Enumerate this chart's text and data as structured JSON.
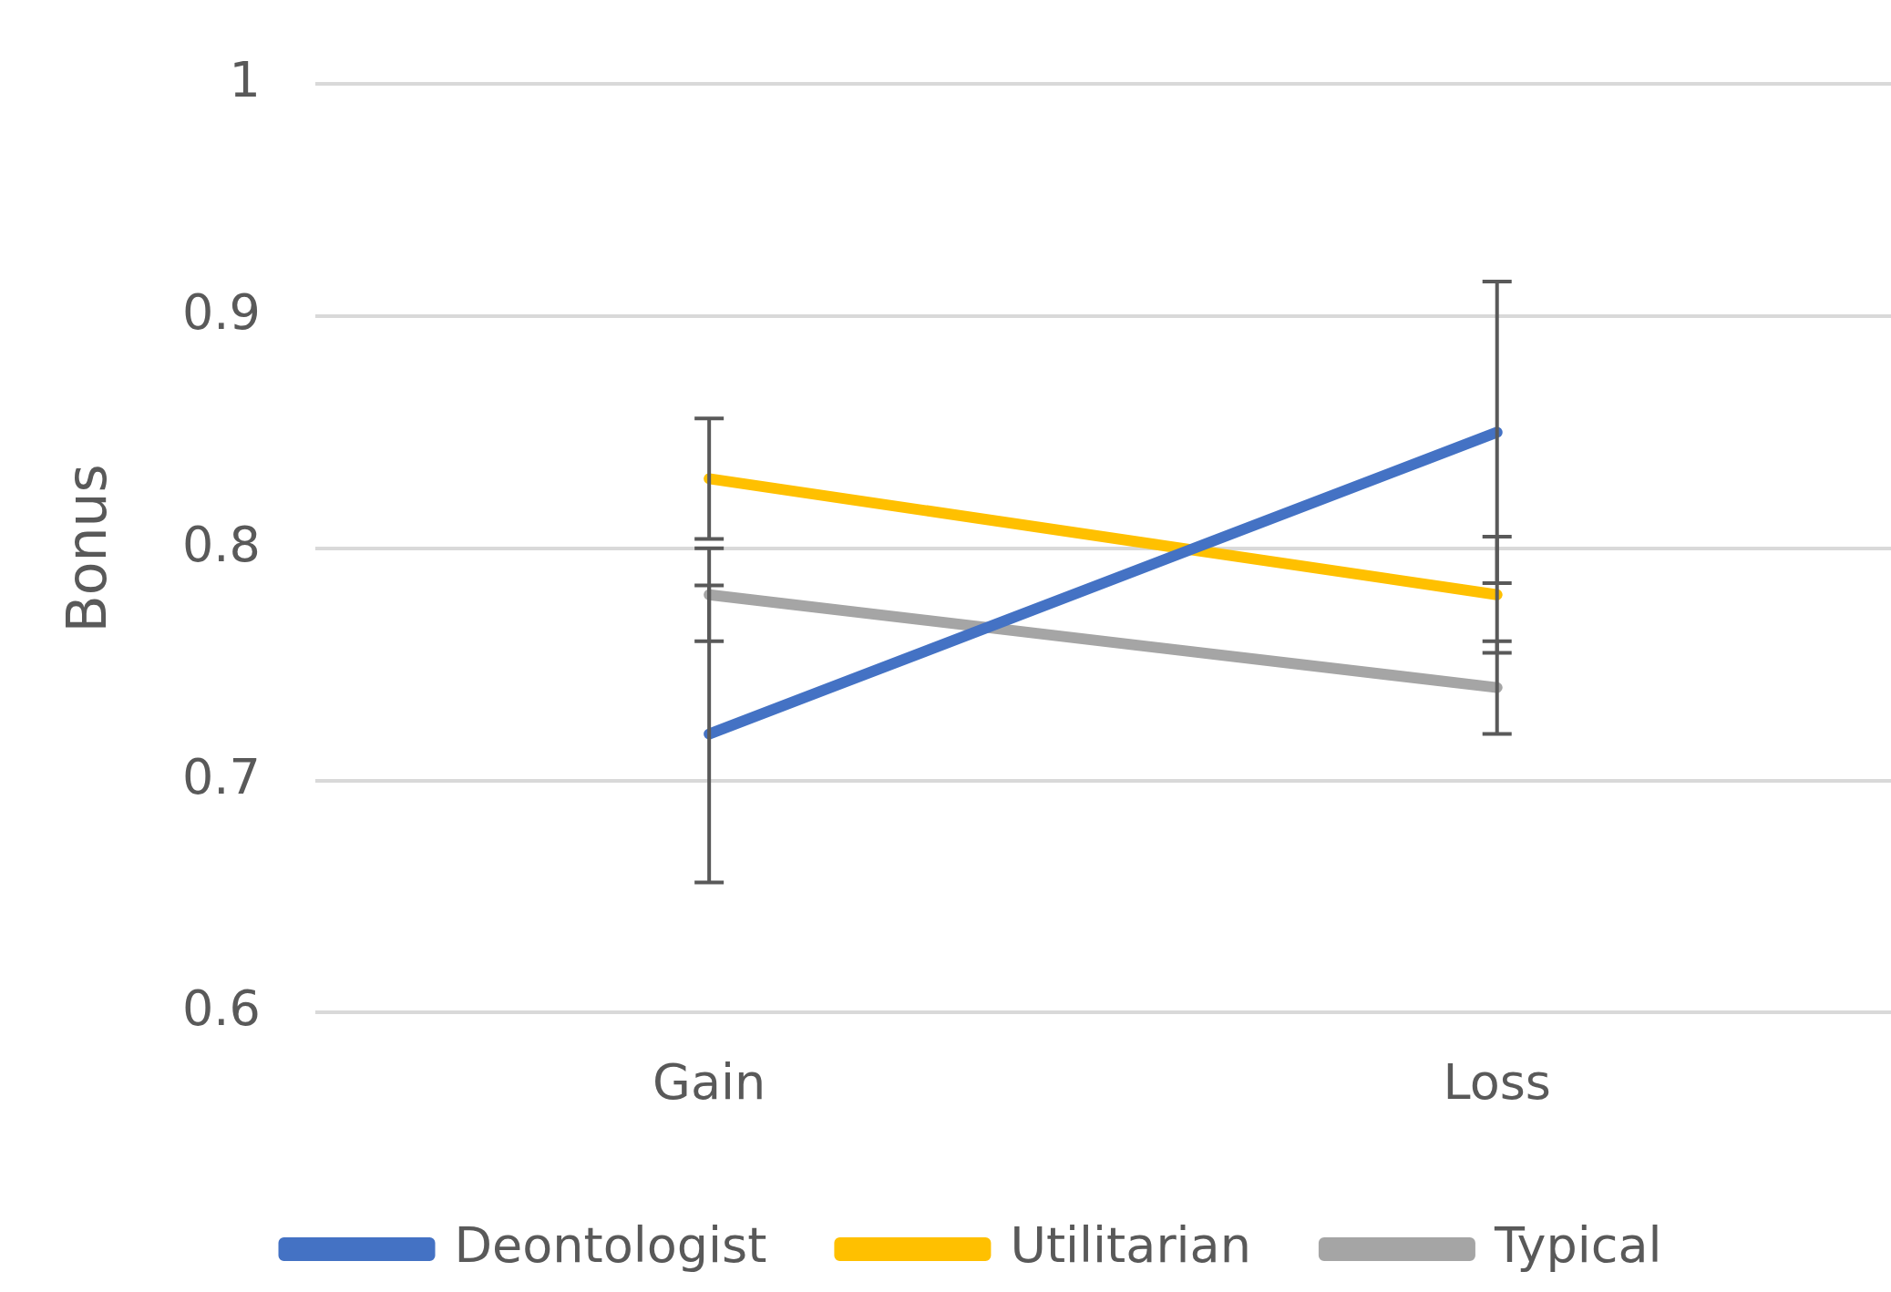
{
  "chart_data": {
    "type": "line",
    "ylabel": "Bonus",
    "categories": [
      "Gain",
      "Loss"
    ],
    "series": [
      {
        "name": "Deontologist",
        "color": "#4472c4",
        "values": [
          0.72,
          0.85
        ],
        "errors": [
          0.064,
          0.065
        ]
      },
      {
        "name": "Utilitarian",
        "color": "#ffc000",
        "values": [
          0.83,
          0.78
        ],
        "errors": [
          0.026,
          0.025
        ]
      },
      {
        "name": "Typical",
        "color": "#a5a5a5",
        "values": [
          0.78,
          0.74
        ],
        "errors": [
          0.02,
          0.02
        ]
      }
    ],
    "ylim": [
      0.6,
      1
    ],
    "yticks": [
      0.6,
      0.7,
      0.8,
      0.9,
      1
    ],
    "grid": "y",
    "legend": "bottom",
    "marker": "none",
    "line_style": "solid"
  }
}
